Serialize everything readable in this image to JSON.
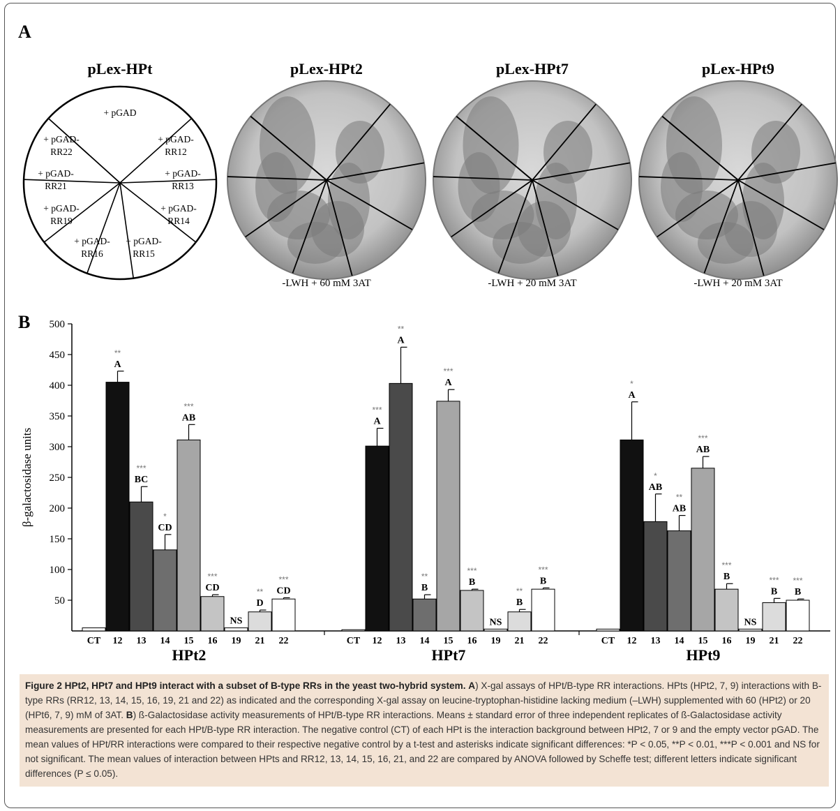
{
  "panel_a": {
    "label": "A",
    "diagram": {
      "title": "pLex-HPt",
      "sectors": [
        "+ pGAD",
        "+ pGAD-\nRR12",
        "+ pGAD-\nRR13",
        "+ pGAD-\nRR14",
        "+ pGAD-\nRR15",
        "+ pGAD-\nRR16",
        "+ pGAD-\nRR19",
        "+ pGAD-\nRR21",
        "+ pGAD-\nRR22"
      ]
    },
    "plates": [
      {
        "title": "pLex-HPt2",
        "condition": "-LWH + 60 mM 3AT"
      },
      {
        "title": "pLex-HPt7",
        "condition": "-LWH + 20 mM 3AT"
      },
      {
        "title": "pLex-HPt9",
        "condition": "-LWH + 20 mM 3AT"
      }
    ]
  },
  "panel_b": {
    "label": "B"
  },
  "chart_data": {
    "type": "bar",
    "ylabel": "β-galactosidase units",
    "ylim": [
      0,
      500
    ],
    "yticks": [
      50,
      100,
      150,
      200,
      250,
      300,
      350,
      400,
      450,
      500
    ],
    "categories": [
      "CT",
      "12",
      "13",
      "14",
      "15",
      "16",
      "19",
      "21",
      "22"
    ],
    "colors": [
      "#ffffff",
      "#111111",
      "#4a4a4a",
      "#6e6e6e",
      "#a6a6a6",
      "#c4c4c4",
      "#ffffff",
      "#dcdcdc",
      "#ffffff"
    ],
    "groups": [
      {
        "name": "HPt2",
        "values": [
          5,
          405,
          210,
          132,
          311,
          56,
          5,
          31,
          52
        ],
        "errors": [
          0,
          18,
          25,
          25,
          25,
          3,
          0,
          3,
          2
        ],
        "stars": [
          "",
          "**",
          "***",
          "*",
          "***",
          "***",
          "",
          "**",
          "***"
        ],
        "letters": [
          "",
          "A",
          "BC",
          "CD",
          "AB",
          "CD",
          "NS",
          "D",
          "CD"
        ]
      },
      {
        "name": "HPt7",
        "values": [
          2,
          301,
          403,
          52,
          374,
          66,
          3,
          31,
          68
        ],
        "errors": [
          0,
          29,
          59,
          7,
          19,
          2,
          0,
          4,
          2
        ],
        "stars": [
          "",
          "***",
          "**",
          "**",
          "***",
          "***",
          "",
          "**",
          "***"
        ],
        "letters": [
          "",
          "A",
          "A",
          "B",
          "A",
          "B",
          "NS",
          "B",
          "B"
        ]
      },
      {
        "name": "HPt9",
        "values": [
          3,
          311,
          178,
          163,
          265,
          68,
          3,
          46,
          50
        ],
        "errors": [
          0,
          62,
          45,
          25,
          19,
          9,
          0,
          7,
          2
        ],
        "stars": [
          "",
          "*",
          "*",
          "**",
          "***",
          "***",
          "",
          "***",
          "***"
        ],
        "letters": [
          "",
          "A",
          "AB",
          "AB",
          "AB",
          "B",
          "NS",
          "B",
          "B"
        ]
      }
    ]
  },
  "caption": {
    "title": "Figure 2 HPt2, HPt7 and HPt9 interact with a subset of B-type RRs in the yeast two-hybrid system.",
    "a_label": "A",
    "a_text": ") X-gal assays of HPt/B-type RR interactions. HPts (HPt2, 7, 9) interactions with B-type RRs (RR12, 13, 14, 15, 16, 19, 21 and 22) as indicated and the corresponding X-gal assay on leucine-tryptophan-histidine lacking medium (–LWH) supplemented with 60 (HPt2) or 20 (HPt6, 7, 9) mM of 3AT.",
    "b_label": "B",
    "b_text": ") ß-Galactosidase activity measurements of HPt/B-type RR interactions. Means ± standard error of three independent replicates of ß-Galactosidase activity measurements are presented for each HPt/B-type RR interaction. The negative control (CT) of each HPt is the interaction background between HPt2, 7 or 9 and the empty vector pGAD. The mean values of HPt/RR interactions were compared to their respective negative control by a t-test and asterisks indicate significant differences: *P < 0.05, **P < 0.01, ***P < 0.001 and NS for not significant. The mean values of interaction between HPts and RR12, 13, 14, 15, 16, 21, and 22 are compared by ANOVA followed by Scheffe test; different letters indicate significant differences (P ≤ 0.05)."
  }
}
